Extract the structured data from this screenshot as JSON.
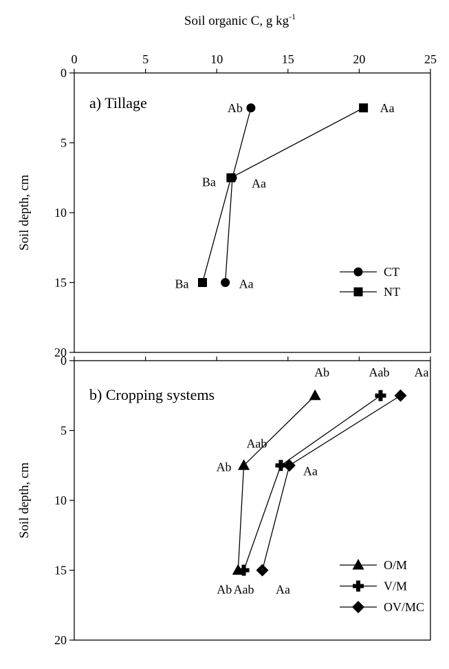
{
  "chart_data": [
    {
      "type": "line",
      "title": "a) Tillage",
      "xlabel": "Soil organic C, g kg",
      "xlabel_sup": "-1",
      "ylabel": "Soil depth, cm",
      "xlim": [
        0,
        25
      ],
      "ylim": [
        20,
        0
      ],
      "x_ticks": [
        "0",
        "5",
        "10",
        "15",
        "20",
        "25"
      ],
      "y_ticks": [
        "0",
        "5",
        "10",
        "15",
        "20"
      ],
      "legend": "bottom-right",
      "series": [
        {
          "name": "CT",
          "marker": "circle",
          "points": [
            {
              "x": 12.4,
              "y": 2.5,
              "label": "Ab"
            },
            {
              "x": 11.1,
              "y": 7.5,
              "label": "Aa"
            },
            {
              "x": 10.6,
              "y": 15,
              "label": "Aa"
            }
          ]
        },
        {
          "name": "NT",
          "marker": "square",
          "points": [
            {
              "x": 20.3,
              "y": 2.5,
              "label": "Aa"
            },
            {
              "x": 11.0,
              "y": 7.5,
              "label": "Ba"
            },
            {
              "x": 9.0,
              "y": 15,
              "label": "Ba"
            }
          ]
        }
      ]
    },
    {
      "type": "line",
      "title": "b) Cropping systems",
      "xlabel": "",
      "ylabel": "Soil depth, cm",
      "xlim": [
        0,
        25
      ],
      "ylim": [
        20,
        0
      ],
      "y_ticks": [
        "0",
        "5",
        "10",
        "15",
        "20"
      ],
      "legend": "bottom-right",
      "series": [
        {
          "name": "O/M",
          "marker": "triangle",
          "points": [
            {
              "x": 16.9,
              "y": 2.5,
              "label": "Ab"
            },
            {
              "x": 11.9,
              "y": 7.5,
              "label": "Ab"
            },
            {
              "x": 11.5,
              "y": 15,
              "label": "Ab"
            }
          ]
        },
        {
          "name": "V/M",
          "marker": "plus",
          "points": [
            {
              "x": 21.5,
              "y": 2.5,
              "label": "Aab"
            },
            {
              "x": 14.5,
              "y": 7.5,
              "label": "Aab"
            },
            {
              "x": 11.9,
              "y": 15,
              "label": "Aab"
            }
          ]
        },
        {
          "name": "OV/MC",
          "marker": "diamond",
          "points": [
            {
              "x": 22.9,
              "y": 2.5,
              "label": "Aa"
            },
            {
              "x": 15.1,
              "y": 7.5,
              "label": "Aa"
            },
            {
              "x": 13.2,
              "y": 15,
              "label": "Aa"
            }
          ]
        }
      ]
    }
  ]
}
